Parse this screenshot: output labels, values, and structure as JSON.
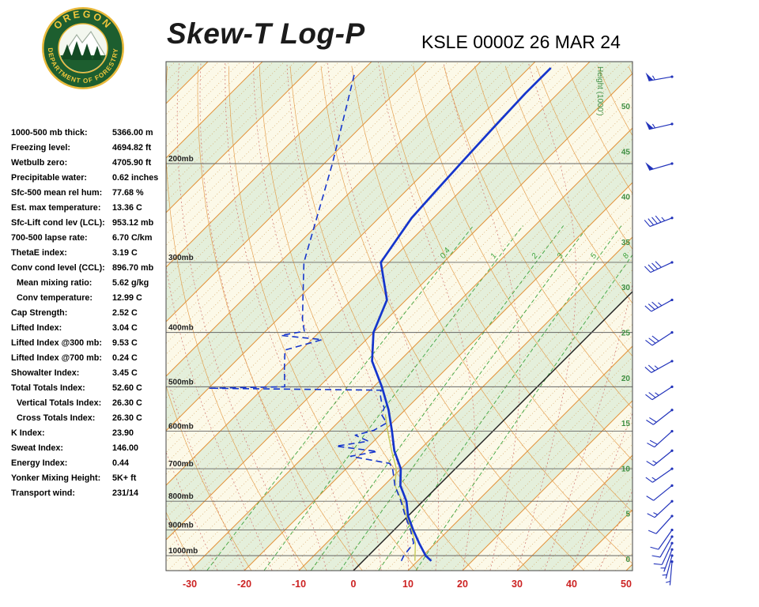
{
  "header": {
    "title": "Skew-T Log-P",
    "station_line": "KSLE 0000Z 26 MAR 24",
    "logo": {
      "top_text": "OREGON",
      "bottom_text": "DEPARTMENT OF FORESTRY"
    }
  },
  "stats": {
    "rows": [
      {
        "label": "1000-500 mb thick:",
        "value": "5366.00 m"
      },
      {
        "label": "Freezing level:",
        "value": "4694.82 ft"
      },
      {
        "label": "Wetbulb zero:",
        "value": "4705.90 ft"
      },
      {
        "label": "Precipitable water:",
        "value": "0.62 inches"
      },
      {
        "label": "Sfc-500 mean rel hum:",
        "value": "77.68 %"
      },
      {
        "label": "Est. max temperature:",
        "value": "13.36 C"
      },
      {
        "label": "Sfc-Lift cond lev (LCL):",
        "value": "953.12 mb"
      },
      {
        "label": "700-500 lapse rate:",
        "value": "6.70 C/km"
      },
      {
        "label": "ThetaE index:",
        "value": "3.19 C"
      },
      {
        "label": "Conv cond level (CCL):",
        "value": "896.70 mb"
      },
      {
        "label": "Mean mixing ratio:",
        "value": "5.62 g/kg",
        "indent": true
      },
      {
        "label": "Conv temperature:",
        "value": "12.99 C",
        "indent": true
      },
      {
        "label": "Cap Strength:",
        "value": "2.52 C"
      },
      {
        "label": "Lifted Index:",
        "value": "3.04 C"
      },
      {
        "label": "Lifted Index @300 mb:",
        "value": "9.53 C"
      },
      {
        "label": "Lifted Index @700 mb:",
        "value": "0.24 C"
      },
      {
        "label": "Showalter Index:",
        "value": "3.45 C"
      },
      {
        "label": "Total Totals Index:",
        "value": "52.60 C"
      },
      {
        "label": "Vertical Totals Index:",
        "value": "26.30 C",
        "indent": true
      },
      {
        "label": "Cross Totals Index:",
        "value": "26.30 C",
        "indent": true
      },
      {
        "label": "K Index:",
        "value": "23.90"
      },
      {
        "label": "Sweat Index:",
        "value": "146.00"
      },
      {
        "label": "Energy Index:",
        "value": "0.44"
      },
      {
        "label": "Yonker Mixing Height:",
        "value": "5K+ ft"
      },
      {
        "label": "Transport wind:",
        "value": "231/14"
      }
    ]
  },
  "chart_data": {
    "type": "line",
    "title": "Skew-T Log-P",
    "station": "KSLE",
    "valid_time": "0000Z 26 MAR 24",
    "x_axis": {
      "unit": "C",
      "ticks": [
        -30,
        -20,
        -10,
        0,
        10,
        20,
        30,
        40,
        50
      ],
      "range_c": [
        -30,
        50
      ]
    },
    "pressure_range_mb": [
      1060,
      130
    ],
    "pressure_lines_mb": [
      200,
      300,
      400,
      500,
      600,
      700,
      800,
      900,
      1000
    ],
    "pressure_label_suffix": "mb",
    "height_ticks_kft": [
      0,
      5,
      10,
      15,
      20,
      25,
      30,
      35,
      40,
      45,
      50
    ],
    "height_axis_label": "Height (1000')",
    "mixing_ratio_lines_gkg": [
      0.4,
      1,
      2,
      3,
      5,
      8
    ],
    "isotherm_step_c": {
      "dotted": 2,
      "solid": 10
    },
    "series": [
      {
        "name": "temperature",
        "pressure_mb": [
          1022,
          1000,
          950,
          900,
          850,
          800,
          750,
          700,
          650,
          600,
          550,
          500,
          450,
          400,
          350,
          300,
          250,
          225,
          200,
          175,
          150,
          135
        ],
        "value_c": [
          12.5,
          10.5,
          7,
          3.5,
          0,
          -3,
          -7,
          -10,
          -14.5,
          -18.5,
          -23,
          -28.5,
          -35,
          -40,
          -43.5,
          -51.5,
          -54,
          -54.5,
          -55,
          -55.5,
          -56,
          -56
        ]
      },
      {
        "name": "dewpoint",
        "pressure_mb": [
          1022,
          1000,
          950,
          900,
          850,
          800,
          750,
          700,
          685,
          665,
          652,
          638,
          625,
          610,
          598,
          580,
          560,
          545,
          530,
          515,
          507,
          503,
          500,
          465,
          430,
          412,
          405,
          398,
          380,
          350,
          300,
          250,
          200,
          160,
          138
        ],
        "value_c": [
          7,
          6.5,
          6,
          3,
          -0.5,
          -4,
          -8,
          -11.5,
          -13,
          -21.5,
          -17.5,
          -26,
          -21,
          -24.5,
          -22,
          -21,
          -23.5,
          -24.2,
          -26,
          -27.5,
          -28,
          -60,
          -46.3,
          -49.6,
          -53,
          -48.1,
          -56.4,
          -52.9,
          -55.3,
          -58.9,
          -65.6,
          -71.4,
          -78.5,
          -86,
          -91
        ]
      },
      {
        "name": "wetbulb",
        "pressure_mb": [
          1022,
          950,
          900,
          850,
          800,
          750,
          700,
          650,
          600,
          560
        ],
        "value_c": [
          9.5,
          6.3,
          3.2,
          -0.3,
          -3.8,
          -8,
          -10.8,
          -15,
          -19.3,
          -22.8
        ]
      }
    ],
    "winds": [
      {
        "pressure_mb": 1025,
        "dir_deg": 185,
        "speed_kt": 5
      },
      {
        "pressure_mb": 1000,
        "dir_deg": 195,
        "speed_kt": 8
      },
      {
        "pressure_mb": 975,
        "dir_deg": 200,
        "speed_kt": 8
      },
      {
        "pressure_mb": 950,
        "dir_deg": 205,
        "speed_kt": 10
      },
      {
        "pressure_mb": 925,
        "dir_deg": 210,
        "speed_kt": 10
      },
      {
        "pressure_mb": 900,
        "dir_deg": 215,
        "speed_kt": 12
      },
      {
        "pressure_mb": 850,
        "dir_deg": 222,
        "speed_kt": 12
      },
      {
        "pressure_mb": 800,
        "dir_deg": 227,
        "speed_kt": 15
      },
      {
        "pressure_mb": 750,
        "dir_deg": 231,
        "speed_kt": 14
      },
      {
        "pressure_mb": 700,
        "dir_deg": 235,
        "speed_kt": 15
      },
      {
        "pressure_mb": 650,
        "dir_deg": 231,
        "speed_kt": 18
      },
      {
        "pressure_mb": 600,
        "dir_deg": 228,
        "speed_kt": 20
      },
      {
        "pressure_mb": 550,
        "dir_deg": 232,
        "speed_kt": 20
      },
      {
        "pressure_mb": 500,
        "dir_deg": 237,
        "speed_kt": 25
      },
      {
        "pressure_mb": 450,
        "dir_deg": 241,
        "speed_kt": 25
      },
      {
        "pressure_mb": 400,
        "dir_deg": 237,
        "speed_kt": 30
      },
      {
        "pressure_mb": 350,
        "dir_deg": 241,
        "speed_kt": 35
      },
      {
        "pressure_mb": 300,
        "dir_deg": 245,
        "speed_kt": 40
      },
      {
        "pressure_mb": 250,
        "dir_deg": 249,
        "speed_kt": 45
      },
      {
        "pressure_mb": 200,
        "dir_deg": 254,
        "speed_kt": 50
      },
      {
        "pressure_mb": 170,
        "dir_deg": 257,
        "speed_kt": 55
      },
      {
        "pressure_mb": 140,
        "dir_deg": 260,
        "speed_kt": 55
      }
    ],
    "colors": {
      "temperature": "#1535cc",
      "dewpoint": "#1535cc",
      "wetbulb": "#c3c94e",
      "isotherm": "#e2933a",
      "isotherm_minor": "#cf9b52",
      "zero_isotherm": "#222222",
      "dry_adiabat": "#e2933a",
      "moist_adiabat": "#d4827d",
      "mixing_ratio": "#3fa53f",
      "band_green": "#e4efdb",
      "band_cream": "#fcf9e8",
      "pressure_line": "#666666",
      "pressure_label": "#222222",
      "height_label": "#3e8e41",
      "x_label": "#cc2222",
      "wind": "#2233bb",
      "border": "#444444"
    }
  }
}
